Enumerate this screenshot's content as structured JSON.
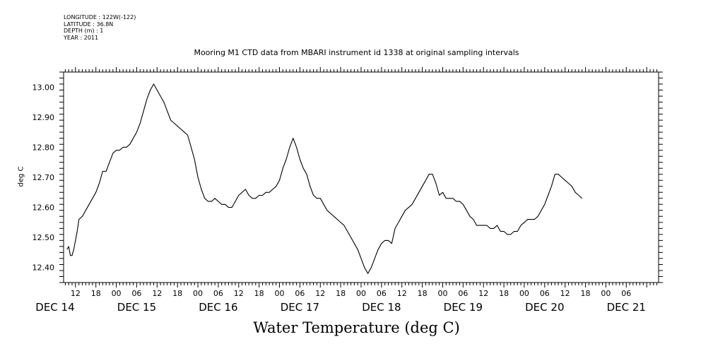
{
  "metadata": {
    "longitude": "LONGITUDE : 122W(-122)",
    "latitude": "LATITUDE : 36.8N",
    "depth": "DEPTH (m) : 1",
    "year": "YEAR : 2011"
  },
  "chart_data": {
    "type": "line",
    "title": "Mooring M1 CTD data from MBARI instrument id 1338 at original sampling intervals",
    "bottom_title": "Water Temperature (deg C)",
    "ylabel": "deg C",
    "xlabel": "",
    "x_unit": "hours since DEC 14 00",
    "xlim": [
      -9.5,
      165.5
    ],
    "ylim": [
      12.35,
      13.05
    ],
    "y_ticks": [
      "12.40",
      "12.50",
      "12.60",
      "12.70",
      "12.80",
      "12.90",
      "13.00"
    ],
    "x_hour_ticks": [
      "12",
      "18",
      "00",
      "06",
      "12",
      "18",
      "00",
      "06",
      "12",
      "18",
      "00",
      "06",
      "12",
      "18",
      "00",
      "06",
      "12",
      "18",
      "00",
      "06",
      "12",
      "18",
      "00",
      "06",
      "12",
      "18",
      "00",
      "06"
    ],
    "x_day_labels": [
      "DEC 14",
      "DEC 15",
      "DEC 16",
      "DEC 17",
      "DEC 18",
      "DEC 19",
      "DEC 20",
      "DEC 21"
    ],
    "grid": false,
    "series": [
      {
        "values": [
          [
            -8.5,
            12.46
          ],
          [
            -8,
            12.47
          ],
          [
            -7.5,
            12.44
          ],
          [
            -7,
            12.44
          ],
          [
            -6.5,
            12.46
          ],
          [
            -6,
            12.49
          ],
          [
            -5.5,
            12.52
          ],
          [
            -5,
            12.56
          ],
          [
            -4,
            12.57
          ],
          [
            -3,
            12.59
          ],
          [
            -2,
            12.61
          ],
          [
            -1,
            12.63
          ],
          [
            0,
            12.65
          ],
          [
            1,
            12.68
          ],
          [
            2,
            12.72
          ],
          [
            3,
            12.72
          ],
          [
            4,
            12.75
          ],
          [
            5,
            12.78
          ],
          [
            6,
            12.79
          ],
          [
            7,
            12.79
          ],
          [
            8,
            12.8
          ],
          [
            9,
            12.8
          ],
          [
            10,
            12.81
          ],
          [
            11,
            12.83
          ],
          [
            12,
            12.85
          ],
          [
            13,
            12.88
          ],
          [
            14,
            12.92
          ],
          [
            15,
            12.96
          ],
          [
            16,
            12.99
          ],
          [
            17,
            13.01
          ],
          [
            18,
            12.99
          ],
          [
            19,
            12.97
          ],
          [
            20,
            12.95
          ],
          [
            21,
            12.92
          ],
          [
            22,
            12.89
          ],
          [
            23,
            12.88
          ],
          [
            24,
            12.87
          ],
          [
            25,
            12.86
          ],
          [
            26,
            12.85
          ],
          [
            27,
            12.84
          ],
          [
            28,
            12.8
          ],
          [
            29,
            12.76
          ],
          [
            30,
            12.7
          ],
          [
            31,
            12.66
          ],
          [
            32,
            12.63
          ],
          [
            33,
            12.62
          ],
          [
            34,
            12.62
          ],
          [
            35,
            12.63
          ],
          [
            36,
            12.62
          ],
          [
            37,
            12.61
          ],
          [
            38,
            12.61
          ],
          [
            39,
            12.6
          ],
          [
            40,
            12.6
          ],
          [
            41,
            12.62
          ],
          [
            42,
            12.64
          ],
          [
            43,
            12.65
          ],
          [
            44,
            12.66
          ],
          [
            45,
            12.64
          ],
          [
            46,
            12.63
          ],
          [
            47,
            12.63
          ],
          [
            48,
            12.64
          ],
          [
            49,
            12.64
          ],
          [
            50,
            12.65
          ],
          [
            51,
            12.65
          ],
          [
            52,
            12.66
          ],
          [
            53,
            12.67
          ],
          [
            54,
            12.69
          ],
          [
            55,
            12.73
          ],
          [
            56,
            12.76
          ],
          [
            57,
            12.8
          ],
          [
            58,
            12.83
          ],
          [
            59,
            12.8
          ],
          [
            60,
            12.76
          ],
          [
            61,
            12.73
          ],
          [
            62,
            12.71
          ],
          [
            63,
            12.67
          ],
          [
            64,
            12.64
          ],
          [
            65,
            12.63
          ],
          [
            66,
            12.63
          ],
          [
            67,
            12.61
          ],
          [
            68,
            12.59
          ],
          [
            69,
            12.58
          ],
          [
            70,
            12.57
          ],
          [
            71,
            12.56
          ],
          [
            72,
            12.55
          ],
          [
            73,
            12.54
          ],
          [
            74,
            12.52
          ],
          [
            75,
            12.5
          ],
          [
            76,
            12.48
          ],
          [
            77,
            12.46
          ],
          [
            78,
            12.43
          ],
          [
            79,
            12.4
          ],
          [
            80,
            12.38
          ],
          [
            81,
            12.4
          ],
          [
            82,
            12.43
          ],
          [
            83,
            12.46
          ],
          [
            84,
            12.48
          ],
          [
            85,
            12.49
          ],
          [
            86,
            12.49
          ],
          [
            87,
            12.48
          ],
          [
            88,
            12.53
          ],
          [
            89,
            12.55
          ],
          [
            90,
            12.57
          ],
          [
            91,
            12.59
          ],
          [
            92,
            12.6
          ],
          [
            93,
            12.61
          ],
          [
            94,
            12.63
          ],
          [
            95,
            12.65
          ],
          [
            96,
            12.67
          ],
          [
            97,
            12.69
          ],
          [
            98,
            12.71
          ],
          [
            99,
            12.71
          ],
          [
            100,
            12.68
          ],
          [
            101,
            12.64
          ],
          [
            102,
            12.65
          ],
          [
            103,
            12.63
          ],
          [
            104,
            12.63
          ],
          [
            105,
            12.63
          ],
          [
            106,
            12.62
          ],
          [
            107,
            12.62
          ],
          [
            108,
            12.61
          ],
          [
            109,
            12.59
          ],
          [
            110,
            12.57
          ],
          [
            111,
            12.56
          ],
          [
            112,
            12.54
          ],
          [
            113,
            12.54
          ],
          [
            114,
            12.54
          ],
          [
            115,
            12.54
          ],
          [
            116,
            12.53
          ],
          [
            117,
            12.53
          ],
          [
            118,
            12.54
          ],
          [
            119,
            12.52
          ],
          [
            120,
            12.52
          ],
          [
            121,
            12.51
          ],
          [
            122,
            12.51
          ],
          [
            123,
            12.52
          ],
          [
            124,
            12.52
          ],
          [
            125,
            12.54
          ],
          [
            126,
            12.55
          ],
          [
            127,
            12.56
          ],
          [
            128,
            12.56
          ],
          [
            129,
            12.56
          ],
          [
            130,
            12.57
          ],
          [
            131,
            12.59
          ],
          [
            132,
            12.61
          ],
          [
            133,
            12.64
          ],
          [
            134,
            12.67
          ],
          [
            135,
            12.71
          ],
          [
            136,
            12.71
          ],
          [
            137,
            12.7
          ],
          [
            138,
            12.69
          ],
          [
            139,
            12.68
          ],
          [
            140,
            12.67
          ],
          [
            141,
            12.65
          ],
          [
            142,
            12.64
          ],
          [
            143,
            12.63
          ]
        ]
      }
    ]
  }
}
